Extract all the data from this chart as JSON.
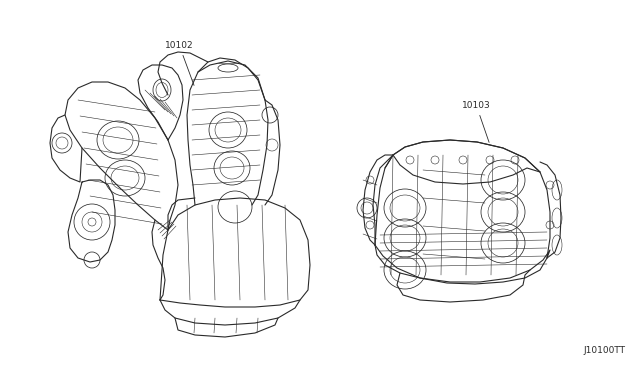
{
  "background_color": "#ffffff",
  "diagram_code": "J10100TT",
  "part1_number": "10102",
  "part2_number": "10103",
  "text_color": "#2a2a2a",
  "line_color": "#2a2a2a",
  "font_size_part": 6.5,
  "font_size_code": 6.5,
  "fig_width": 6.4,
  "fig_height": 3.72,
  "dpi": 100
}
